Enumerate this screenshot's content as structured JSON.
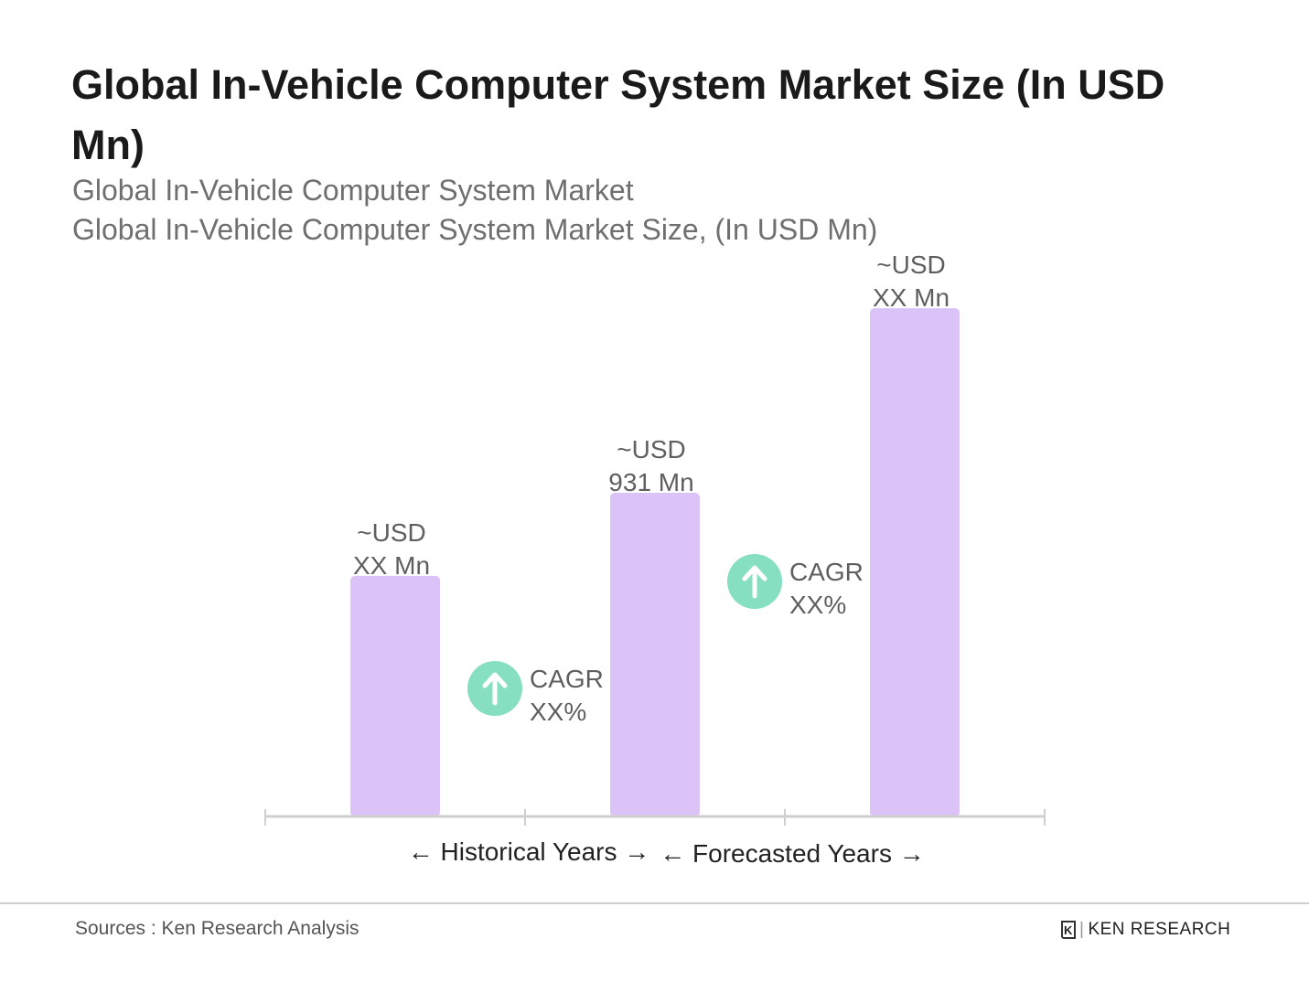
{
  "chart_data": {
    "type": "bar",
    "title": "Global In-Vehicle Computer System Market Size (In USD Mn)",
    "subtitle_lines": [
      "Global In-Vehicle Computer System Market",
      "Global In-Vehicle Computer System Market Size, (In USD Mn)"
    ],
    "categories": [
      "",
      "",
      ""
    ],
    "values": [
      692,
      931,
      1462
    ],
    "data_labels": [
      [
        "~USD",
        "XX Mn"
      ],
      [
        "~USD",
        "931 Mn"
      ],
      [
        "~USD",
        "XX Mn"
      ]
    ],
    "cagr_annotations": [
      [
        "CAGR",
        "XX%"
      ],
      [
        "CAGR",
        "XX%"
      ]
    ],
    "period_labels": [
      "Historical Years",
      "Forecasted Years"
    ],
    "xlabel": "",
    "ylabel": "",
    "grid": false,
    "colors": {
      "bar": "#dcc3f7",
      "cagr_icon": "#86dfc1",
      "axis": "#cfcfcf",
      "text": "#5f5f5f"
    }
  },
  "footer": {
    "source": "Sources : Ken Research Analysis",
    "logo_text": "KEN RESEARCH"
  }
}
